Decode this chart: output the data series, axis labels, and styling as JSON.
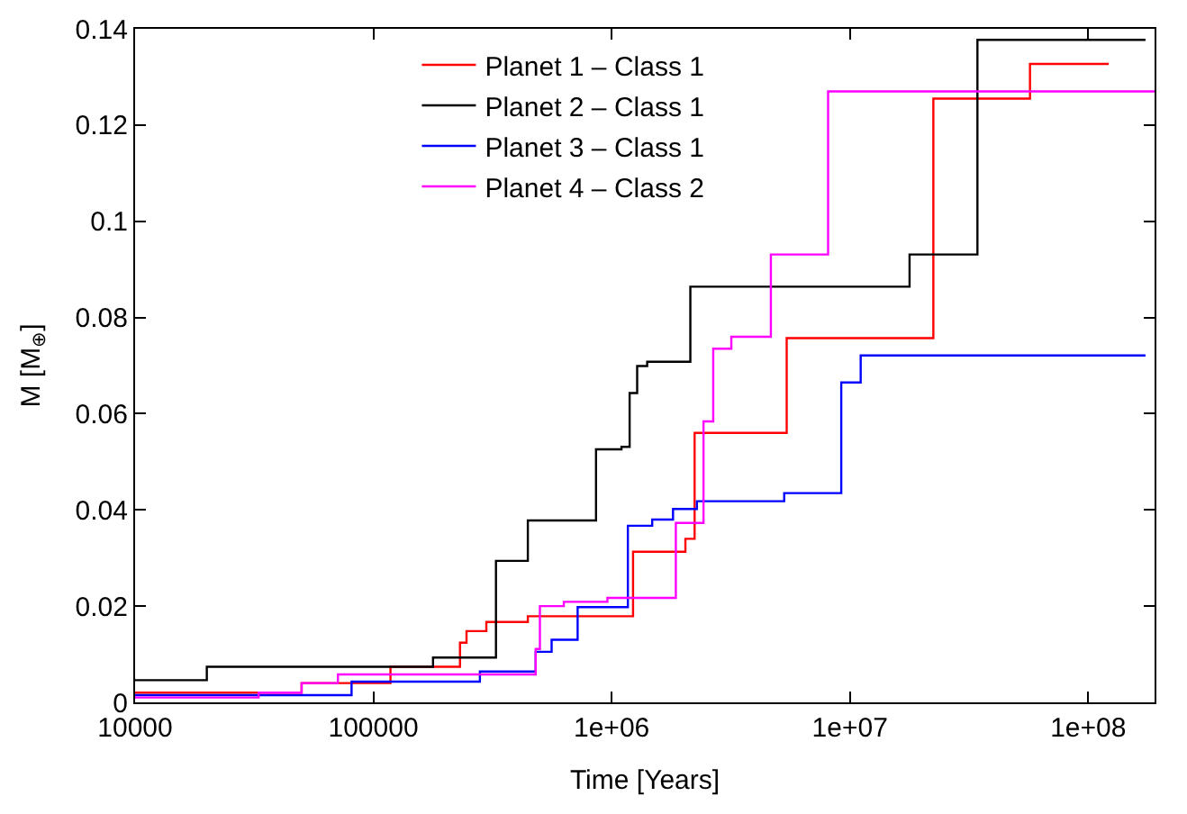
{
  "chart_data": {
    "type": "step",
    "xlabel": "Time [Years]",
    "ylabel": "M [M$_{⊕}$]",
    "log": "x",
    "legend": "top",
    "line_style": "solid",
    "xlim": [
      10000,
      190000000
    ],
    "xticks": [
      {
        "value": 10000,
        "label": "10000"
      },
      {
        "value": 100000,
        "label": "100000"
      },
      {
        "value": 1000000,
        "label": "1e+06"
      },
      {
        "value": 10000000,
        "label": "1e+07"
      },
      {
        "value": 100000000,
        "label": "1e+08"
      }
    ],
    "ylim": [
      0,
      0.14
    ],
    "yticks": [
      0,
      0.02,
      0.04,
      0.06,
      0.08,
      0.1,
      0.12,
      0.14
    ],
    "series": [
      {
        "name": "Planet 1 – Class 1",
        "color": "#ff0000",
        "x": [
          10000,
          40000,
          50000,
          118000,
          231000,
          246000,
          298000,
          445000,
          1230000,
          2040000,
          2230000,
          5430000,
          22400000,
          57000000,
          122000000
        ],
        "values": [
          0.002,
          0.002,
          0.004,
          0.0074,
          0.0124,
          0.0148,
          0.0167,
          0.0179,
          0.0313,
          0.034,
          0.056,
          0.0757,
          0.1255,
          0.1327,
          0.1327
        ]
      },
      {
        "name": "Planet 2 – Class 1",
        "color": "#000000",
        "x": [
          10000,
          20000,
          178000,
          327000,
          445000,
          860000,
          1100000,
          1190000,
          1280000,
          1410000,
          2140000,
          17800000,
          34300000,
          174000000
        ],
        "values": [
          0.0046,
          0.0074,
          0.0093,
          0.0294,
          0.0378,
          0.0526,
          0.0531,
          0.0643,
          0.0699,
          0.0708,
          0.0864,
          0.0931,
          0.1377,
          0.1377
        ]
      },
      {
        "name": "Planet 3 – Class 1",
        "color": "#0000ff",
        "x": [
          10000,
          61000,
          81000,
          280000,
          480000,
          560000,
          720000,
          1170000,
          1480000,
          1810000,
          2280000,
          5300000,
          9200000,
          11100000,
          174000000
        ],
        "values": [
          0.0015,
          0.0015,
          0.0043,
          0.0064,
          0.0105,
          0.013,
          0.0198,
          0.0367,
          0.038,
          0.0402,
          0.0418,
          0.0435,
          0.0665,
          0.0721,
          0.0721
        ]
      },
      {
        "name": "Planet 4 – Class 2",
        "color": "#ff00ff",
        "x": [
          10000,
          33000,
          50000,
          71000,
          480000,
          500000,
          630000,
          960000,
          1860000,
          2430000,
          2670000,
          3180000,
          4660000,
          8100000,
          190000000
        ],
        "values": [
          0.001,
          0.002,
          0.004,
          0.0058,
          0.0111,
          0.02,
          0.0209,
          0.0217,
          0.0373,
          0.0584,
          0.0735,
          0.076,
          0.0931,
          0.127,
          0.127
        ]
      }
    ]
  }
}
